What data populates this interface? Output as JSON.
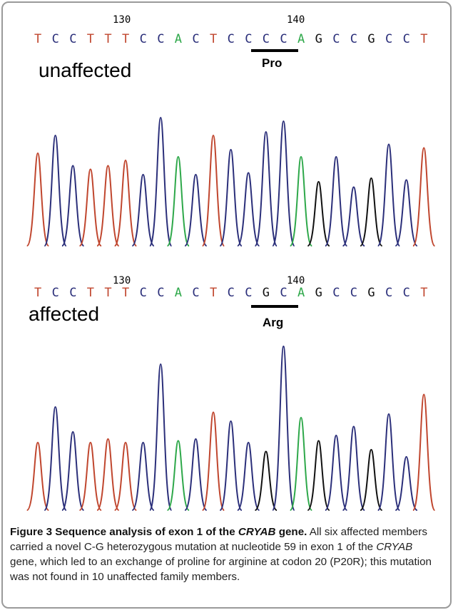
{
  "figure": {
    "panels": [
      {
        "id": "top",
        "label": "unaffected",
        "position_labels": [
          "130",
          "140"
        ],
        "sequence": [
          "T",
          "C",
          "C",
          "T",
          "T",
          "T",
          "C",
          "C",
          "A",
          "C",
          "T",
          "C",
          "C",
          "C",
          "C",
          "A",
          "G",
          "C",
          "C",
          "G",
          "C",
          "C",
          "T"
        ],
        "codon_label": "Pro"
      },
      {
        "id": "bottom",
        "label": "affected",
        "position_labels": [
          "130",
          "140"
        ],
        "sequence": [
          "T",
          "C",
          "C",
          "T",
          "T",
          "T",
          "C",
          "C",
          "A",
          "C",
          "T",
          "C",
          "C",
          "G",
          "C",
          "A",
          "G",
          "C",
          "C",
          "G",
          "C",
          "C",
          "T"
        ],
        "codon_label": "Arg"
      }
    ],
    "colors": {
      "A": "#2ea84a",
      "C": "#2b2f7a",
      "G": "#111111",
      "T": "#c0462e",
      "position_text": "#000000"
    },
    "caption": {
      "bold_prefix": "Figure 3 Sequence analysis of exon 1 of the ",
      "bold_gene": "CRYAB",
      "bold_suffix": " gene.",
      "text_1": " All six affected members carried a novel C-G heterozygous mutation at nucleotide 59 in exon 1 of the ",
      "gene": "CRYAB",
      "text_2": " gene, which led to an exchange of proline for arginine at codon 20 (P20R); this mutation was not found in 10 unaffected family members."
    }
  }
}
